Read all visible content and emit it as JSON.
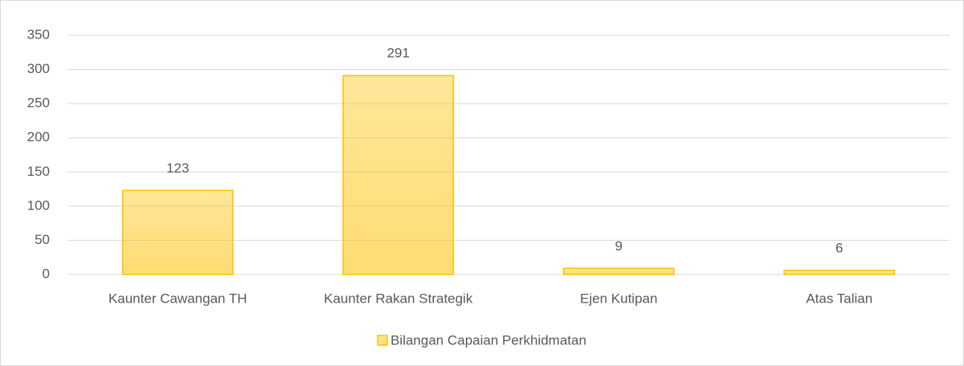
{
  "chart_data": {
    "type": "bar",
    "categories": [
      "Kaunter Cawangan TH",
      "Kaunter Rakan Strategik",
      "Ejen Kutipan",
      "Atas Talian"
    ],
    "series": [
      {
        "name": "Bilangan Capaian Perkhidmatan",
        "color": "#ffc000",
        "values": [
          123,
          291,
          9,
          6
        ]
      }
    ],
    "ylim": [
      0,
      350
    ],
    "yticks": [
      0,
      50,
      100,
      150,
      200,
      250,
      300,
      350
    ],
    "grid": true,
    "legend": "bottom"
  }
}
